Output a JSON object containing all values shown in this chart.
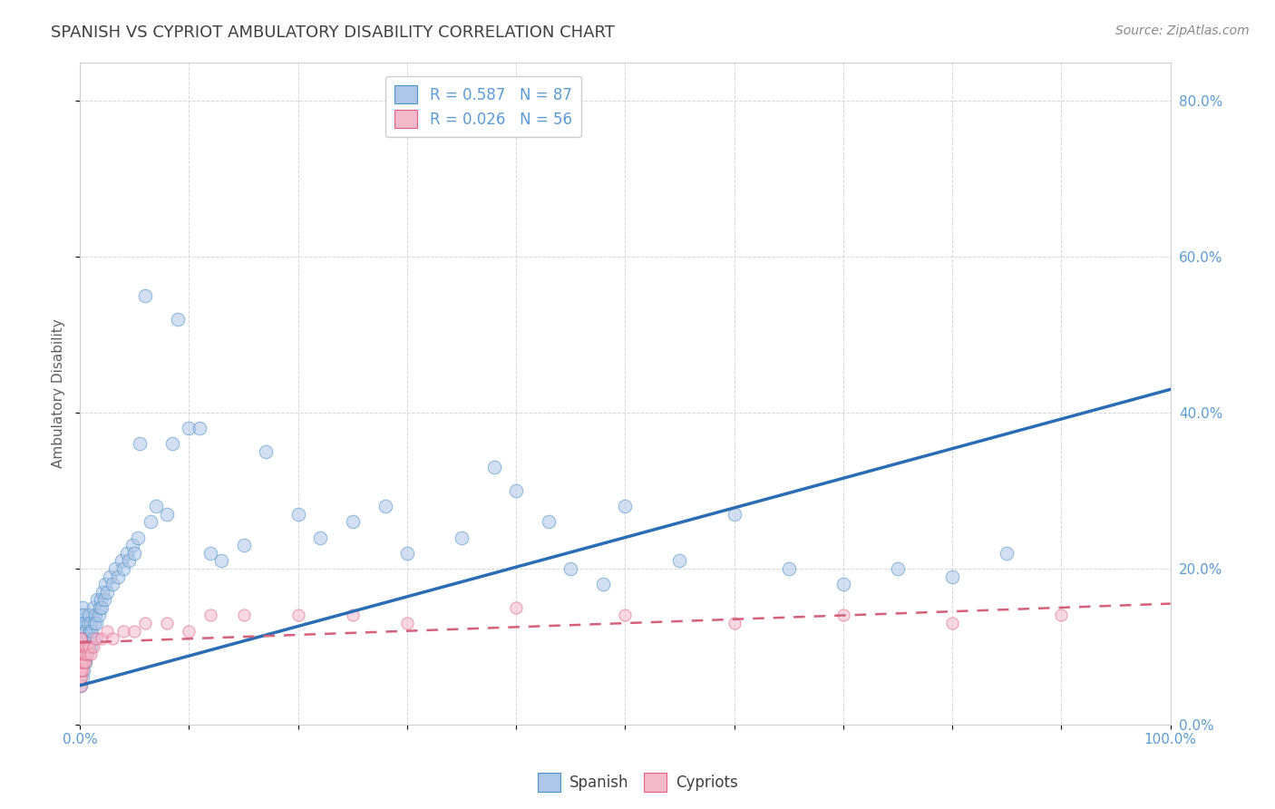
{
  "title": "SPANISH VS CYPRIOT AMBULATORY DISABILITY CORRELATION CHART",
  "source_text": "Source: ZipAtlas.com",
  "ylabel": "Ambulatory Disability",
  "xlim": [
    0.0,
    1.0
  ],
  "ylim": [
    0.0,
    0.85
  ],
  "xticks": [
    0.0,
    0.1,
    0.2,
    0.3,
    0.4,
    0.5,
    0.6,
    0.7,
    0.8,
    0.9,
    1.0
  ],
  "xticklabels": [
    "0.0%",
    "",
    "",
    "",
    "",
    "",
    "",
    "",
    "",
    "",
    "100.0%"
  ],
  "yticks": [
    0.0,
    0.2,
    0.4,
    0.6,
    0.8
  ],
  "yticklabels": [
    "0.0%",
    "20.0%",
    "40.0%",
    "60.0%",
    "80.0%"
  ],
  "spanish_color": "#aec6e8",
  "cypriot_color": "#f4b8cb",
  "spanish_edge_color": "#4a90c4",
  "cypriot_edge_color": "#e06080",
  "trend_spanish_color": "#2a6db5",
  "trend_cypriot_color": "#d4607a",
  "legend_label_sp": "R = 0.587   N = 87",
  "legend_label_cy": "R = 0.026   N = 56",
  "background_color": "#ffffff",
  "grid_color": "#cccccc",
  "title_color": "#404040",
  "axis_label_color": "#606060",
  "tick_label_color": "#5b9bd5",
  "legend_text_color": "#5b9bd5",
  "spanish_trend_x0": 0.0,
  "spanish_trend_y0": 0.05,
  "spanish_trend_x1": 1.0,
  "spanish_trend_y1": 0.43,
  "cypriot_trend_x0": 0.0,
  "cypriot_trend_y0": 0.105,
  "cypriot_trend_x1": 1.0,
  "cypriot_trend_y1": 0.155,
  "spanish_x": [
    0.001,
    0.001,
    0.001,
    0.001,
    0.001,
    0.002,
    0.002,
    0.002,
    0.002,
    0.002,
    0.003,
    0.003,
    0.003,
    0.003,
    0.004,
    0.004,
    0.004,
    0.005,
    0.005,
    0.005,
    0.006,
    0.006,
    0.007,
    0.007,
    0.008,
    0.008,
    0.009,
    0.01,
    0.01,
    0.011,
    0.012,
    0.012,
    0.013,
    0.014,
    0.015,
    0.016,
    0.017,
    0.018,
    0.019,
    0.02,
    0.021,
    0.022,
    0.023,
    0.025,
    0.027,
    0.03,
    0.032,
    0.035,
    0.038,
    0.04,
    0.043,
    0.045,
    0.048,
    0.05,
    0.053,
    0.055,
    0.06,
    0.065,
    0.07,
    0.08,
    0.085,
    0.09,
    0.1,
    0.11,
    0.12,
    0.13,
    0.15,
    0.17,
    0.2,
    0.22,
    0.25,
    0.28,
    0.3,
    0.35,
    0.38,
    0.4,
    0.43,
    0.45,
    0.48,
    0.5,
    0.55,
    0.6,
    0.65,
    0.7,
    0.75,
    0.8,
    0.85
  ],
  "spanish_y": [
    0.05,
    0.07,
    0.09,
    0.12,
    0.14,
    0.06,
    0.08,
    0.1,
    0.13,
    0.15,
    0.07,
    0.09,
    0.11,
    0.14,
    0.08,
    0.1,
    0.13,
    0.08,
    0.1,
    0.12,
    0.09,
    0.11,
    0.1,
    0.13,
    0.1,
    0.14,
    0.12,
    0.1,
    0.13,
    0.12,
    0.11,
    0.15,
    0.13,
    0.14,
    0.13,
    0.16,
    0.14,
    0.15,
    0.16,
    0.15,
    0.17,
    0.16,
    0.18,
    0.17,
    0.19,
    0.18,
    0.2,
    0.19,
    0.21,
    0.2,
    0.22,
    0.21,
    0.23,
    0.22,
    0.24,
    0.36,
    0.55,
    0.26,
    0.28,
    0.27,
    0.36,
    0.52,
    0.38,
    0.38,
    0.22,
    0.21,
    0.23,
    0.35,
    0.27,
    0.24,
    0.26,
    0.28,
    0.22,
    0.24,
    0.33,
    0.3,
    0.26,
    0.2,
    0.18,
    0.28,
    0.21,
    0.27,
    0.2,
    0.18,
    0.2,
    0.19,
    0.22
  ],
  "cypriot_x": [
    0.0005,
    0.0005,
    0.0005,
    0.0005,
    0.0005,
    0.0005,
    0.0005,
    0.0005,
    0.0005,
    0.0005,
    0.001,
    0.001,
    0.001,
    0.001,
    0.001,
    0.001,
    0.001,
    0.001,
    0.001,
    0.001,
    0.002,
    0.002,
    0.002,
    0.002,
    0.003,
    0.003,
    0.003,
    0.004,
    0.004,
    0.005,
    0.005,
    0.006,
    0.007,
    0.008,
    0.01,
    0.012,
    0.015,
    0.02,
    0.025,
    0.03,
    0.04,
    0.05,
    0.06,
    0.08,
    0.1,
    0.12,
    0.15,
    0.2,
    0.25,
    0.3,
    0.4,
    0.5,
    0.6,
    0.7,
    0.8,
    0.9
  ],
  "cypriot_y": [
    0.05,
    0.06,
    0.07,
    0.07,
    0.08,
    0.08,
    0.09,
    0.09,
    0.1,
    0.11,
    0.06,
    0.07,
    0.07,
    0.08,
    0.08,
    0.09,
    0.09,
    0.1,
    0.1,
    0.11,
    0.07,
    0.08,
    0.09,
    0.1,
    0.08,
    0.09,
    0.1,
    0.09,
    0.1,
    0.08,
    0.09,
    0.1,
    0.09,
    0.1,
    0.09,
    0.1,
    0.11,
    0.11,
    0.12,
    0.11,
    0.12,
    0.12,
    0.13,
    0.13,
    0.12,
    0.14,
    0.14,
    0.14,
    0.14,
    0.13,
    0.15,
    0.14,
    0.13,
    0.14,
    0.13,
    0.14
  ],
  "title_fontsize": 13,
  "source_fontsize": 10,
  "axis_label_fontsize": 11,
  "tick_fontsize": 11,
  "legend_fontsize": 12,
  "marker_size_spanish": 110,
  "marker_size_cypriot": 90,
  "marker_alpha": 0.55
}
